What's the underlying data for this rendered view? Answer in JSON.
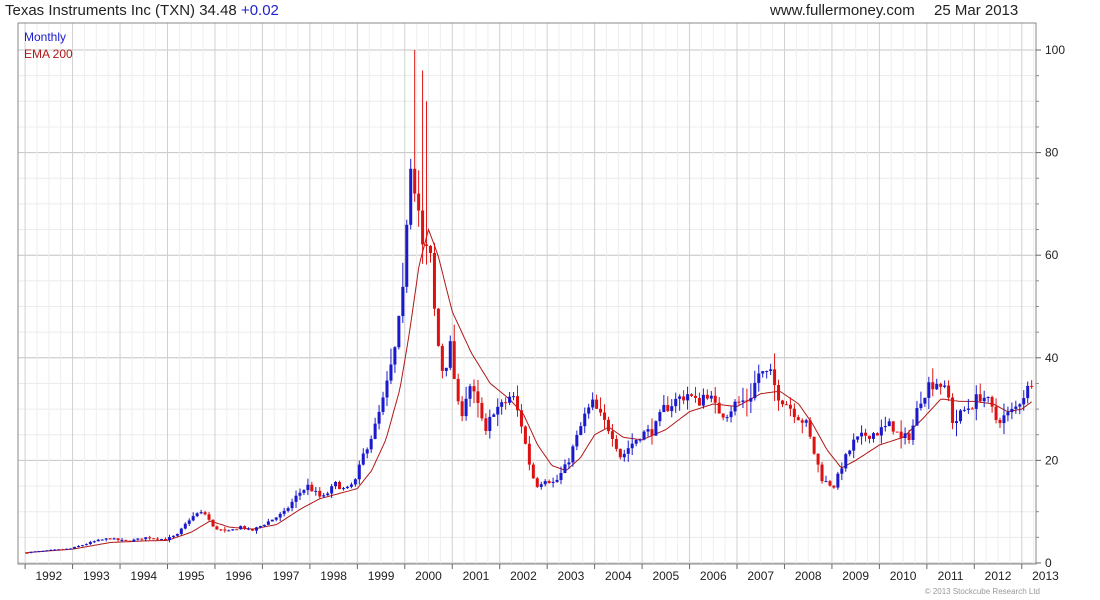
{
  "header": {
    "title": "Texas Instruments Inc (TXN) 34.48",
    "change": "+0.02",
    "site": "www.fullermoney.com",
    "date": "25 Mar 2013"
  },
  "footer": {
    "copyright": "© 2013 Stockcube Research Ltd"
  },
  "colors": {
    "up": "#1a1acc",
    "down": "#dd1111",
    "ema": "#b01818",
    "grid": "#d8d8d8",
    "legend_monthly": "#1a1acc",
    "legend_ema": "#b01818"
  },
  "chart_data": {
    "type": "candlestick",
    "legend": [
      "Monthly",
      "EMA 200"
    ],
    "legend_position": "top-left",
    "x_tick_labels": [
      "1992",
      "1993",
      "1994",
      "1995",
      "1996",
      "1997",
      "1998",
      "1999",
      "2000",
      "2001",
      "2002",
      "2003",
      "2004",
      "2005",
      "2006",
      "2007",
      "2008",
      "2009",
      "2010",
      "2011",
      "2012",
      "2013"
    ],
    "y_ticks": [
      0,
      20,
      40,
      60,
      80,
      100
    ],
    "ylim": [
      0,
      100
    ],
    "xlim": [
      1991.85,
      2013.3
    ],
    "grid": true,
    "y_axis_side": "right",
    "price_keypoints": [
      [
        1992.0,
        2.0
      ],
      [
        1993.0,
        2.8
      ],
      [
        1993.5,
        4.2
      ],
      [
        1993.8,
        4.8
      ],
      [
        1994.2,
        4.2
      ],
      [
        1994.6,
        5.0
      ],
      [
        1995.0,
        4.6
      ],
      [
        1995.25,
        5.5
      ],
      [
        1995.5,
        8.5
      ],
      [
        1995.7,
        9.8
      ],
      [
        1995.85,
        9.5
      ],
      [
        1996.0,
        7.0
      ],
      [
        1996.3,
        6.0
      ],
      [
        1996.6,
        7.2
      ],
      [
        1996.8,
        6.2
      ],
      [
        1997.0,
        7.2
      ],
      [
        1997.5,
        9.8
      ],
      [
        1997.8,
        13.5
      ],
      [
        1998.0,
        15.0
      ],
      [
        1998.3,
        12.5
      ],
      [
        1998.6,
        15.5
      ],
      [
        1998.8,
        14.0
      ],
      [
        1999.0,
        16.0
      ],
      [
        1999.2,
        22.0
      ],
      [
        1999.4,
        26.0
      ],
      [
        1999.6,
        32.0
      ],
      [
        1999.85,
        42.0
      ],
      [
        2000.0,
        52.0
      ],
      [
        2000.15,
        80.0
      ],
      [
        2000.3,
        72.0
      ],
      [
        2000.45,
        58.0
      ],
      [
        2000.55,
        63.0
      ],
      [
        2000.7,
        45.0
      ],
      [
        2000.85,
        37.0
      ],
      [
        2001.0,
        42.0
      ],
      [
        2001.2,
        28.0
      ],
      [
        2001.4,
        35.0
      ],
      [
        2001.6,
        30.0
      ],
      [
        2001.75,
        25.0
      ],
      [
        2001.9,
        30.0
      ],
      [
        2002.1,
        30.5
      ],
      [
        2002.3,
        33.0
      ],
      [
        2002.5,
        27.0
      ],
      [
        2002.65,
        20.0
      ],
      [
        2002.8,
        15.0
      ],
      [
        2003.0,
        16.5
      ],
      [
        2003.2,
        15.5
      ],
      [
        2003.45,
        19.0
      ],
      [
        2003.65,
        24.0
      ],
      [
        2003.85,
        29.0
      ],
      [
        2004.0,
        31.0
      ],
      [
        2004.2,
        28.0
      ],
      [
        2004.4,
        25.5
      ],
      [
        2004.6,
        20.5
      ],
      [
        2004.75,
        22.5
      ],
      [
        2005.0,
        25.0
      ],
      [
        2005.3,
        26.0
      ],
      [
        2005.5,
        30.0
      ],
      [
        2005.8,
        32.0
      ],
      [
        2006.0,
        33.0
      ],
      [
        2006.2,
        31.0
      ],
      [
        2006.4,
        33.5
      ],
      [
        2006.6,
        30.0
      ],
      [
        2006.8,
        29.0
      ],
      [
        2007.0,
        31.0
      ],
      [
        2007.3,
        32.0
      ],
      [
        2007.5,
        37.0
      ],
      [
        2007.75,
        36.5
      ],
      [
        2007.9,
        33.0
      ],
      [
        2008.1,
        31.0
      ],
      [
        2008.3,
        29.0
      ],
      [
        2008.5,
        27.0
      ],
      [
        2008.65,
        22.0
      ],
      [
        2008.85,
        16.0
      ],
      [
        2009.1,
        15.0
      ],
      [
        2009.25,
        19.0
      ],
      [
        2009.5,
        23.5
      ],
      [
        2009.75,
        25.0
      ],
      [
        2010.0,
        25.5
      ],
      [
        2010.3,
        27.0
      ],
      [
        2010.5,
        24.0
      ],
      [
        2010.7,
        25.0
      ],
      [
        2010.9,
        32.0
      ],
      [
        2011.1,
        35.0
      ],
      [
        2011.3,
        35.5
      ],
      [
        2011.5,
        32.0
      ],
      [
        2011.6,
        27.0
      ],
      [
        2011.8,
        29.5
      ],
      [
        2012.0,
        31.0
      ],
      [
        2012.2,
        33.0
      ],
      [
        2012.35,
        31.0
      ],
      [
        2012.5,
        28.0
      ],
      [
        2012.7,
        28.5
      ],
      [
        2012.9,
        30.0
      ],
      [
        2013.05,
        32.5
      ],
      [
        2013.22,
        34.5
      ]
    ],
    "spikes": [
      {
        "x": 2000.18,
        "high": 100
      },
      {
        "x": 2000.38,
        "high": 90
      },
      {
        "x": 2000.3,
        "high": 96
      }
    ],
    "ema_keypoints": [
      [
        1992.0,
        2.0
      ],
      [
        1993.0,
        2.7
      ],
      [
        1993.8,
        4.0
      ],
      [
        1994.5,
        4.3
      ],
      [
        1995.0,
        4.4
      ],
      [
        1995.5,
        6.0
      ],
      [
        1995.9,
        8.2
      ],
      [
        1996.3,
        7.0
      ],
      [
        1996.8,
        6.6
      ],
      [
        1997.3,
        7.5
      ],
      [
        1997.8,
        10.5
      ],
      [
        1998.2,
        12.5
      ],
      [
        1998.6,
        13.5
      ],
      [
        1999.0,
        14.5
      ],
      [
        1999.3,
        18.0
      ],
      [
        1999.6,
        24.0
      ],
      [
        1999.9,
        34.0
      ],
      [
        2000.1,
        45.0
      ],
      [
        2000.3,
        58.0
      ],
      [
        2000.5,
        65.0
      ],
      [
        2000.7,
        60.0
      ],
      [
        2001.0,
        49.0
      ],
      [
        2001.4,
        41.0
      ],
      [
        2001.8,
        35.0
      ],
      [
        2002.2,
        32.0
      ],
      [
        2002.5,
        29.0
      ],
      [
        2002.8,
        23.0
      ],
      [
        2003.1,
        19.0
      ],
      [
        2003.4,
        18.0
      ],
      [
        2003.7,
        20.5
      ],
      [
        2004.0,
        25.0
      ],
      [
        2004.3,
        26.5
      ],
      [
        2004.6,
        24.5
      ],
      [
        2005.0,
        24.0
      ],
      [
        2005.5,
        26.0
      ],
      [
        2006.0,
        29.5
      ],
      [
        2006.5,
        31.0
      ],
      [
        2007.0,
        30.5
      ],
      [
        2007.5,
        33.0
      ],
      [
        2007.9,
        33.5
      ],
      [
        2008.3,
        31.0
      ],
      [
        2008.6,
        27.0
      ],
      [
        2008.9,
        22.0
      ],
      [
        2009.2,
        18.5
      ],
      [
        2009.5,
        20.0
      ],
      [
        2010.0,
        23.0
      ],
      [
        2010.5,
        24.5
      ],
      [
        2010.9,
        28.0
      ],
      [
        2011.3,
        32.0
      ],
      [
        2011.7,
        31.5
      ],
      [
        2012.0,
        31.5
      ],
      [
        2012.4,
        31.0
      ],
      [
        2012.7,
        29.5
      ],
      [
        2013.0,
        30.0
      ],
      [
        2013.22,
        31.5
      ]
    ]
  }
}
